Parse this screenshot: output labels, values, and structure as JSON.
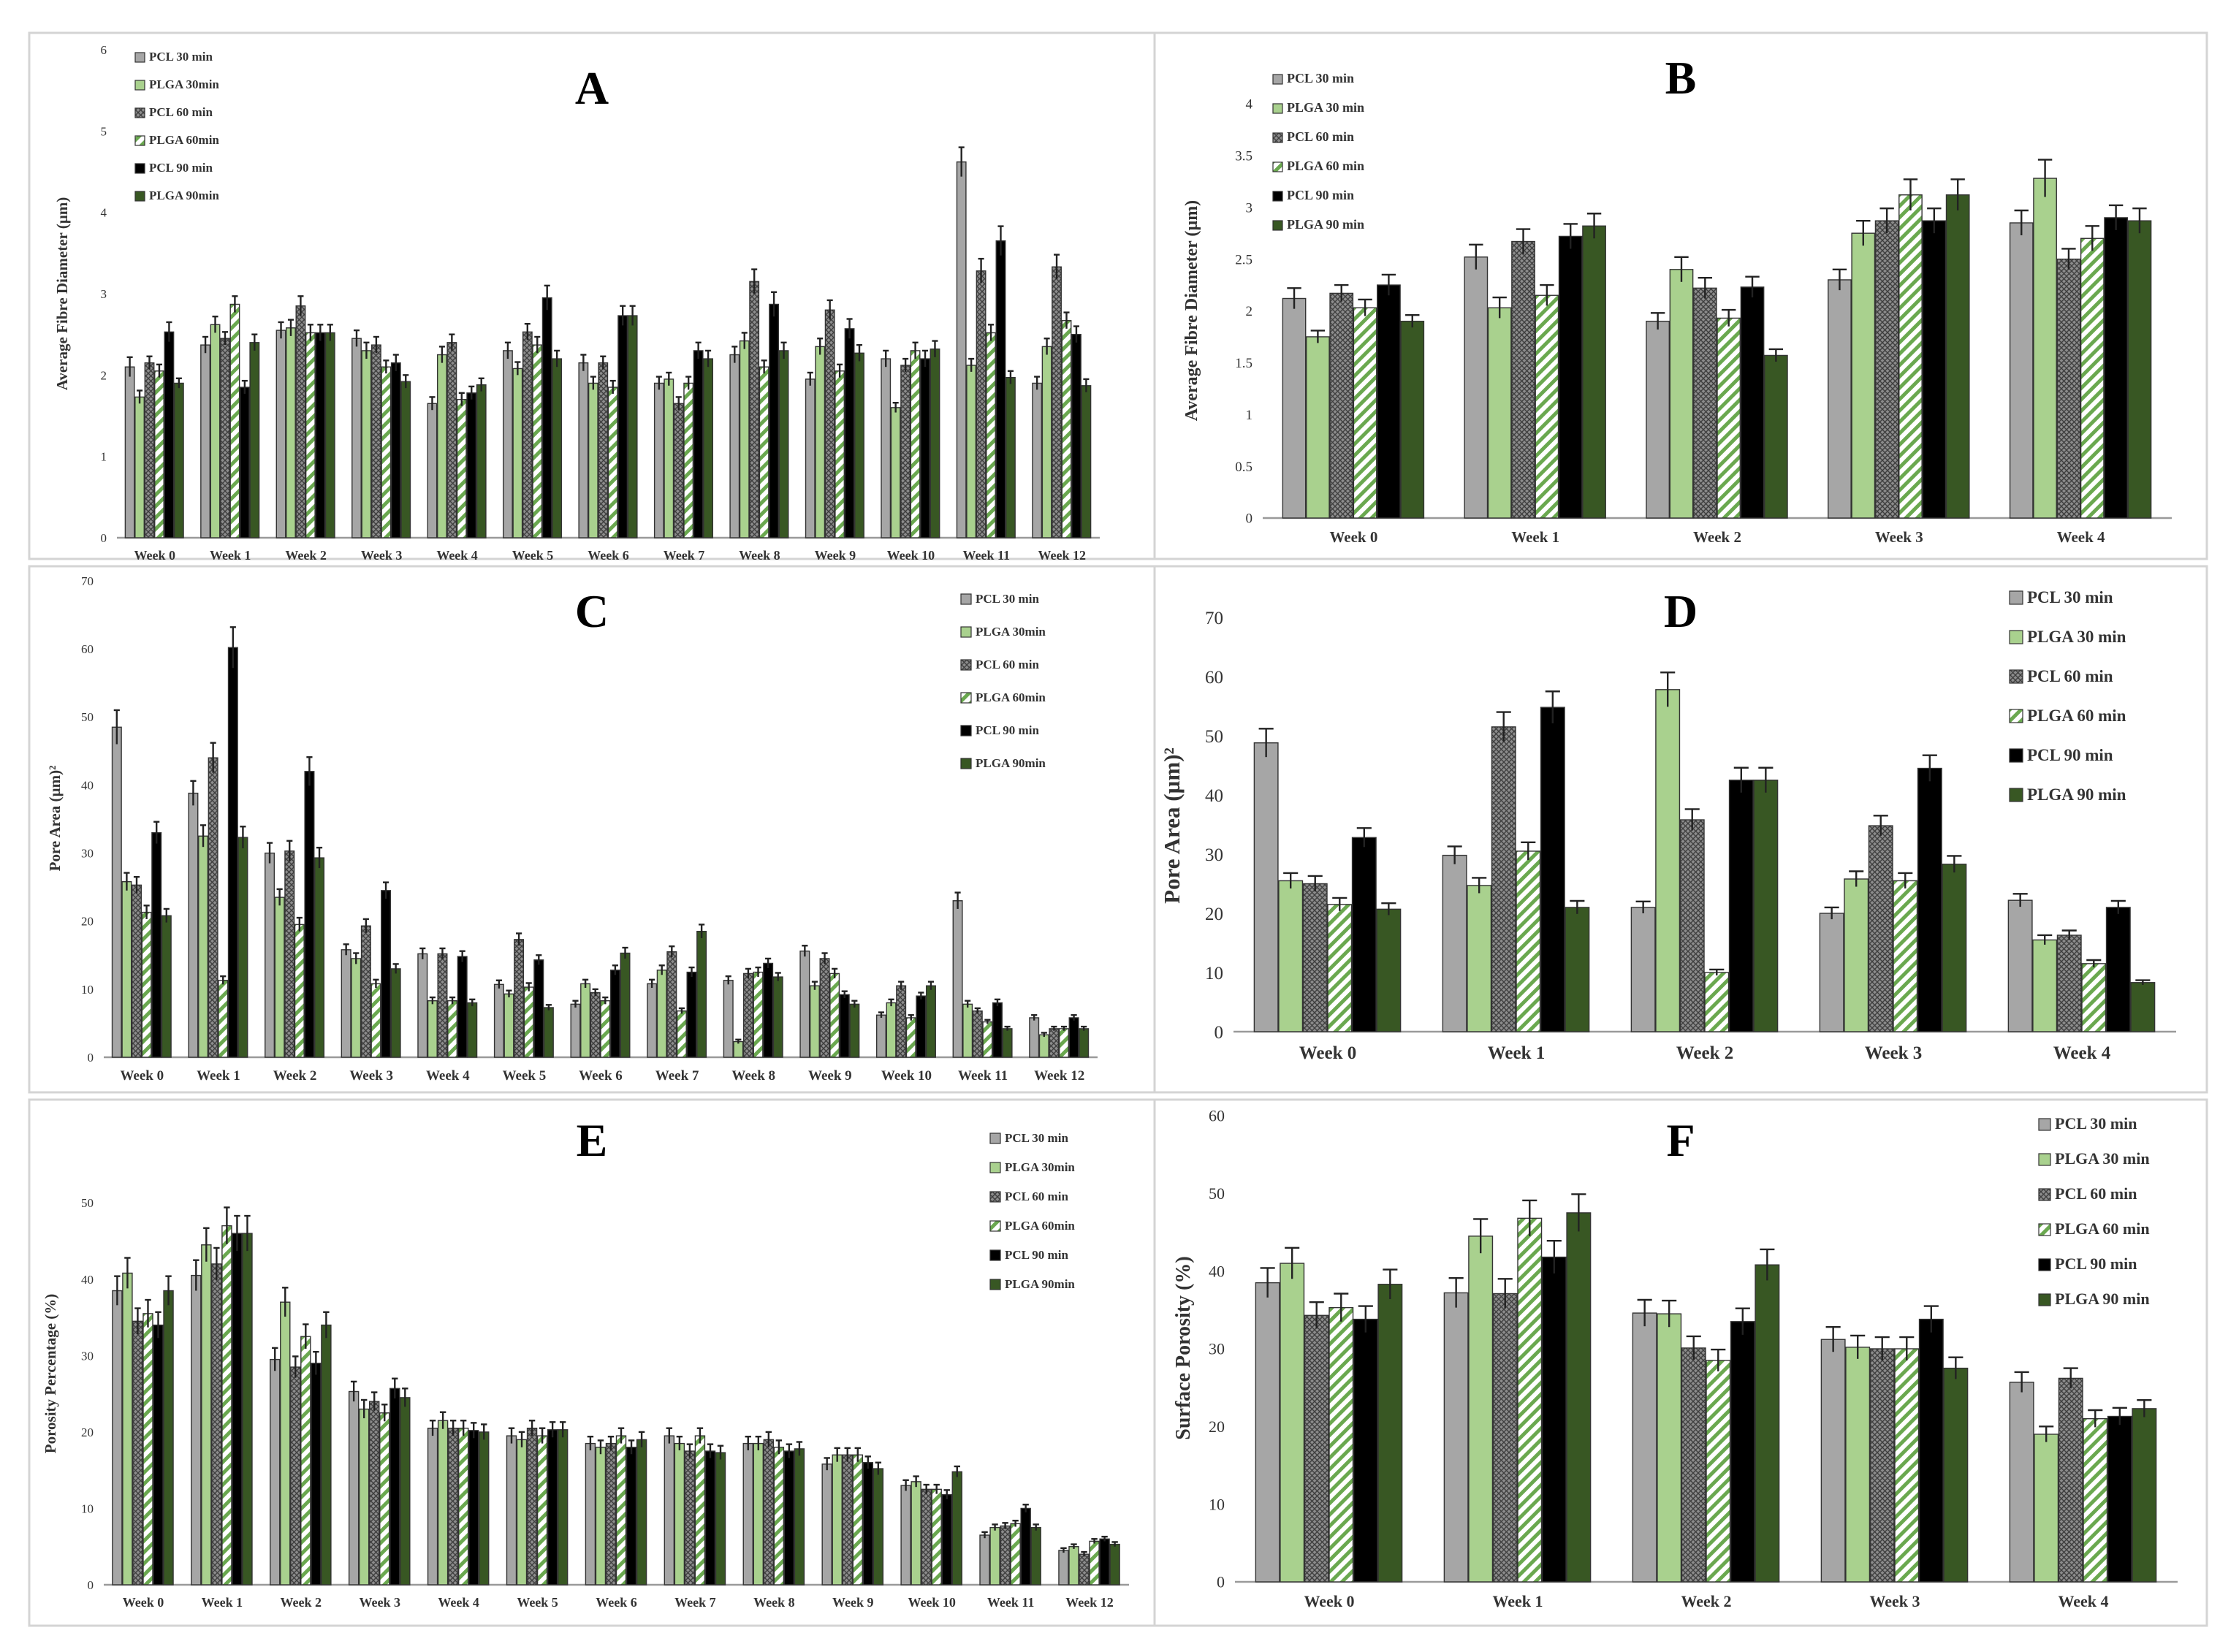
{
  "chart_data": [
    {
      "panel": "A",
      "type": "bar",
      "title": "A",
      "xlabel": "",
      "ylabel": "Average Fibre Diameter (µm)",
      "ylim": [
        0,
        6
      ],
      "yticks": [
        "0",
        "1",
        "2",
        "3",
        "4",
        "5",
        "6"
      ],
      "legend_position": "top-left",
      "categories": [
        "Week 0",
        "Week 1",
        "Week 2",
        "Week 3",
        "Week 4",
        "Week 5",
        "Week 6",
        "Week 7",
        "Week 8",
        "Week 9",
        "Week 10",
        "Week 11",
        "Week 12"
      ],
      "series": [
        {
          "name": "PCL 30 min",
          "style": "pcl30",
          "values": [
            2.1,
            2.37,
            2.55,
            2.45,
            1.65,
            2.3,
            2.15,
            1.9,
            2.25,
            1.95,
            2.2,
            4.62,
            1.9
          ],
          "errors": [
            0.12,
            0.1,
            0.1,
            0.1,
            0.08,
            0.1,
            0.1,
            0.08,
            0.1,
            0.08,
            0.1,
            0.18,
            0.08
          ]
        },
        {
          "name": "PLGA 30min",
          "style": "plga30",
          "values": [
            1.73,
            2.62,
            2.58,
            2.3,
            2.25,
            2.08,
            1.9,
            1.95,
            2.42,
            2.35,
            1.6,
            2.12,
            2.35
          ],
          "errors": [
            0.08,
            0.1,
            0.1,
            0.1,
            0.1,
            0.08,
            0.08,
            0.08,
            0.1,
            0.1,
            0.06,
            0.08,
            0.1
          ]
        },
        {
          "name": "PCL 60 min",
          "style": "pcl60",
          "values": [
            2.15,
            2.45,
            2.85,
            2.37,
            2.4,
            2.53,
            2.15,
            1.65,
            3.15,
            2.8,
            2.12,
            3.28,
            3.33
          ],
          "errors": [
            0.08,
            0.08,
            0.12,
            0.1,
            0.1,
            0.1,
            0.08,
            0.08,
            0.15,
            0.12,
            0.08,
            0.15,
            0.15
          ]
        },
        {
          "name": "PLGA 60min",
          "style": "plga60",
          "values": [
            2.05,
            2.87,
            2.52,
            2.1,
            1.7,
            2.37,
            1.85,
            1.9,
            2.1,
            2.05,
            2.3,
            2.52,
            2.67
          ],
          "errors": [
            0.08,
            0.1,
            0.1,
            0.08,
            0.08,
            0.1,
            0.08,
            0.08,
            0.08,
            0.08,
            0.1,
            0.1,
            0.1
          ]
        },
        {
          "name": "PCL 90 min",
          "style": "pcl90",
          "values": [
            2.53,
            1.85,
            2.52,
            2.15,
            1.78,
            2.95,
            2.73,
            2.3,
            2.87,
            2.57,
            2.2,
            3.65,
            2.5
          ],
          "errors": [
            0.12,
            0.08,
            0.1,
            0.1,
            0.08,
            0.15,
            0.12,
            0.1,
            0.15,
            0.12,
            0.1,
            0.18,
            0.1
          ]
        },
        {
          "name": "PLGA 90min",
          "style": "plga90",
          "values": [
            1.9,
            2.4,
            2.52,
            1.92,
            1.88,
            2.2,
            2.73,
            2.2,
            2.3,
            2.27,
            2.32,
            1.97,
            1.87
          ],
          "errors": [
            0.06,
            0.1,
            0.1,
            0.08,
            0.08,
            0.1,
            0.12,
            0.1,
            0.1,
            0.1,
            0.1,
            0.08,
            0.08
          ]
        }
      ]
    },
    {
      "panel": "B",
      "type": "bar",
      "title": "B",
      "xlabel": "",
      "ylabel": "Average Fibre Diameter (µm)",
      "ylim": [
        0,
        4
      ],
      "yticks": [
        "0",
        "0.5",
        "1",
        "1.5",
        "2",
        "2.5",
        "3",
        "3.5",
        "4"
      ],
      "legend_position": "top-left",
      "categories": [
        "Week 0",
        "Week 1",
        "Week 2",
        "Week 3",
        "Week 4"
      ],
      "series": [
        {
          "name": "PCL 30 min",
          "style": "pcl30",
          "values": [
            2.12,
            2.52,
            1.9,
            2.3,
            2.85
          ],
          "errors": [
            0.1,
            0.12,
            0.08,
            0.1,
            0.12
          ]
        },
        {
          "name": "PLGA 30 min",
          "style": "plga30",
          "values": [
            1.75,
            2.03,
            2.4,
            2.75,
            3.28
          ],
          "errors": [
            0.06,
            0.1,
            0.12,
            0.12,
            0.18
          ]
        },
        {
          "name": "PCL 60 min",
          "style": "pcl60",
          "values": [
            2.17,
            2.67,
            2.22,
            2.87,
            2.5
          ],
          "errors": [
            0.08,
            0.12,
            0.1,
            0.12,
            0.1
          ]
        },
        {
          "name": "PLGA 60 min",
          "style": "plga60",
          "values": [
            2.03,
            2.15,
            1.93,
            3.12,
            2.7
          ],
          "errors": [
            0.08,
            0.1,
            0.08,
            0.15,
            0.12
          ]
        },
        {
          "name": "PCL 90 min",
          "style": "pcl90",
          "values": [
            2.25,
            2.72,
            2.23,
            2.87,
            2.9
          ],
          "errors": [
            0.1,
            0.12,
            0.1,
            0.12,
            0.12
          ]
        },
        {
          "name": "PLGA 90 min",
          "style": "plga90",
          "values": [
            1.9,
            2.82,
            1.57,
            3.12,
            2.87
          ],
          "errors": [
            0.06,
            0.12,
            0.06,
            0.15,
            0.12
          ]
        }
      ]
    },
    {
      "panel": "C",
      "type": "bar",
      "title": "C",
      "xlabel": "",
      "ylabel": "Pore Area (µm)²",
      "ylim": [
        0,
        70
      ],
      "yticks": [
        "0",
        "10",
        "20",
        "30",
        "40",
        "50",
        "60",
        "70"
      ],
      "legend_position": "top-right",
      "categories": [
        "Week 0",
        "Week 1",
        "Week 2",
        "Week 3",
        "Week 4",
        "Week 5",
        "Week 6",
        "Week 7",
        "Week 8",
        "Week 9",
        "Week 10",
        "Week 11",
        "Week 12"
      ],
      "series": [
        {
          "name": "PCL 30 min",
          "style": "pcl30",
          "values": [
            48.5,
            38.8,
            30,
            15.8,
            15.2,
            10.7,
            7.8,
            10.8,
            11.3,
            15.6,
            6.2,
            23,
            5.8
          ],
          "errors": [
            2.5,
            1.8,
            1.5,
            0.8,
            0.8,
            0.6,
            0.5,
            0.6,
            0.6,
            0.8,
            0.4,
            1.2,
            0.4
          ]
        },
        {
          "name": "PLGA 30min",
          "style": "plga30",
          "values": [
            25.8,
            32.5,
            23.5,
            14.5,
            8.3,
            9.3,
            10.8,
            12.8,
            2.3,
            10.5,
            8,
            7.8,
            3.3
          ],
          "errors": [
            1.3,
            1.6,
            1.2,
            0.8,
            0.5,
            0.5,
            0.6,
            0.7,
            0.3,
            0.6,
            0.5,
            0.5,
            0.3
          ]
        },
        {
          "name": "PCL 60 min",
          "style": "pcl60",
          "values": [
            25.3,
            44,
            30.3,
            19.3,
            15.2,
            17.3,
            9.5,
            15.5,
            12.3,
            14.5,
            10.5,
            6.8,
            4.2
          ],
          "errors": [
            1.2,
            2.2,
            1.5,
            1,
            0.8,
            0.9,
            0.5,
            0.8,
            0.7,
            0.8,
            0.6,
            0.4,
            0.3
          ]
        },
        {
          "name": "PLGA 60min",
          "style": "plga60",
          "values": [
            21.3,
            11.3,
            19.5,
            10.8,
            8.3,
            10.3,
            8.3,
            6.8,
            12.5,
            12.3,
            5.8,
            5.2,
            4.2
          ],
          "errors": [
            1,
            0.6,
            1,
            0.6,
            0.5,
            0.6,
            0.5,
            0.4,
            0.7,
            0.7,
            0.4,
            0.3,
            0.3
          ]
        },
        {
          "name": "PCL 90 min",
          "style": "pcl90",
          "values": [
            33,
            60.2,
            42,
            24.5,
            14.8,
            14.3,
            12.8,
            12.5,
            13.8,
            9.2,
            9,
            8,
            5.8
          ],
          "errors": [
            1.6,
            3,
            2.1,
            1.2,
            0.8,
            0.7,
            0.7,
            0.7,
            0.7,
            0.5,
            0.5,
            0.5,
            0.4
          ]
        },
        {
          "name": "PLGA 90min",
          "style": "plga90",
          "values": [
            20.8,
            32.3,
            29.3,
            13,
            8,
            7.3,
            15.3,
            18.5,
            11.8,
            7.8,
            10.5,
            4.2,
            4.2
          ],
          "errors": [
            1,
            1.6,
            1.5,
            0.7,
            0.5,
            0.4,
            0.8,
            1,
            0.6,
            0.5,
            0.6,
            0.3,
            0.3
          ]
        }
      ]
    },
    {
      "panel": "D",
      "type": "bar",
      "title": "D",
      "xlabel": "",
      "ylabel": "Pore Area (µm)²",
      "ylim": [
        0,
        70
      ],
      "yticks": [
        "0",
        "10",
        "20",
        "30",
        "40",
        "50",
        "60",
        "70"
      ],
      "legend_position": "top-right",
      "categories": [
        "Week 0",
        "Week 1",
        "Week 2",
        "Week 3",
        "Week 4"
      ],
      "series": [
        {
          "name": "PCL 30 min",
          "style": "pcl30",
          "values": [
            48.8,
            29.8,
            21,
            20,
            22.2
          ],
          "errors": [
            2.4,
            1.5,
            1,
            1,
            1.1
          ]
        },
        {
          "name": "PLGA 30 min",
          "style": "plga30",
          "values": [
            25.5,
            24.7,
            57.8,
            25.8,
            15.5
          ],
          "errors": [
            1.3,
            1.3,
            2.9,
            1.3,
            0.8
          ]
        },
        {
          "name": "PCL 60 min",
          "style": "pcl60",
          "values": [
            25,
            51.5,
            35.8,
            34.8,
            16.3
          ],
          "errors": [
            1.3,
            2.5,
            1.8,
            1.7,
            0.8
          ]
        },
        {
          "name": "PLGA 60 min",
          "style": "plga60",
          "values": [
            21.5,
            30.5,
            10,
            25.5,
            11.5
          ],
          "errors": [
            1.1,
            1.5,
            0.5,
            1.3,
            0.6
          ]
        },
        {
          "name": "PCL 90 min",
          "style": "pcl90",
          "values": [
            32.8,
            54.8,
            42.5,
            44.5,
            21
          ],
          "errors": [
            1.6,
            2.7,
            2.1,
            2.2,
            1.1
          ]
        },
        {
          "name": "PLGA 90 min",
          "style": "plga90",
          "values": [
            20.7,
            21,
            42.5,
            28.3,
            8.3
          ],
          "errors": [
            1,
            1.1,
            2.1,
            1.4,
            0.4
          ]
        }
      ]
    },
    {
      "panel": "E",
      "type": "bar",
      "title": "E",
      "xlabel": "",
      "ylabel": "Porosity Percentage (%)",
      "ylim": [
        0,
        55
      ],
      "yticks": [
        "0",
        "10",
        "20",
        "30",
        "40",
        "50"
      ],
      "legend_position": "top-right",
      "categories": [
        "Week 0",
        "Week 1",
        "Week 2",
        "Week 3",
        "Week 4",
        "Week 5",
        "Week 6",
        "Week 7",
        "Week 8",
        "Week 9",
        "Week 10",
        "Week 11",
        "Week 12"
      ],
      "series": [
        {
          "name": "PCL 30 min",
          "style": "pcl30",
          "values": [
            38.5,
            40.5,
            29.5,
            25.3,
            20.5,
            19.5,
            18.5,
            19.5,
            18.5,
            15.8,
            13,
            6.5,
            4.5
          ],
          "errors": [
            1.9,
            2,
            1.5,
            1.3,
            1,
            1,
            0.9,
            1,
            0.9,
            0.8,
            0.7,
            0.4,
            0.3
          ]
        },
        {
          "name": "PLGA 30min",
          "style": "plga30",
          "values": [
            40.8,
            44.5,
            37,
            23,
            21.5,
            19,
            18,
            18.5,
            18.5,
            17,
            13.5,
            7.5,
            5
          ],
          "errors": [
            2,
            2.2,
            1.9,
            1.2,
            1.1,
            1,
            0.9,
            0.9,
            0.9,
            0.9,
            0.7,
            0.4,
            0.3
          ]
        },
        {
          "name": "PCL 60 min",
          "style": "pcl60",
          "values": [
            34.5,
            42,
            28.5,
            24,
            20.5,
            20.5,
            18.5,
            17.5,
            19,
            17,
            12.5,
            7.7,
            4
          ],
          "errors": [
            1.7,
            2.1,
            1.4,
            1.2,
            1,
            1,
            0.9,
            0.9,
            1,
            0.9,
            0.6,
            0.4,
            0.3
          ]
        },
        {
          "name": "PLGA 60min",
          "style": "plga60",
          "values": [
            35.5,
            47,
            32.5,
            22.5,
            20.5,
            19.5,
            19.5,
            19.5,
            18,
            17,
            12.5,
            8,
            5.7
          ],
          "errors": [
            1.8,
            2.4,
            1.6,
            1.1,
            1,
            1,
            1,
            1,
            0.9,
            0.9,
            0.6,
            0.4,
            0.3
          ]
        },
        {
          "name": "PCL 90 min",
          "style": "pcl90",
          "values": [
            34,
            46,
            29,
            25.7,
            20.2,
            20.3,
            18,
            17.5,
            17.5,
            16,
            11.8,
            10,
            6
          ],
          "errors": [
            1.7,
            2.3,
            1.5,
            1.3,
            1,
            1,
            0.9,
            0.9,
            0.9,
            0.8,
            0.6,
            0.5,
            0.3
          ]
        },
        {
          "name": "PLGA 90min",
          "style": "plga90",
          "values": [
            38.5,
            46,
            34,
            24.5,
            20,
            20.3,
            19,
            17.3,
            17.8,
            15.2,
            14.8,
            7.5,
            5.3
          ],
          "errors": [
            1.9,
            2.3,
            1.7,
            1.2,
            1,
            1,
            1,
            0.9,
            0.9,
            0.8,
            0.7,
            0.4,
            0.3
          ]
        }
      ]
    },
    {
      "panel": "F",
      "type": "bar",
      "title": "F",
      "xlabel": "",
      "ylabel": "Surface Porosity (%)",
      "ylim": [
        0,
        60
      ],
      "yticks": [
        "0",
        "10",
        "20",
        "30",
        "40",
        "50",
        "60"
      ],
      "legend_position": "top-right",
      "categories": [
        "Week 0",
        "Week 1",
        "Week 2",
        "Week 3",
        "Week 4"
      ],
      "series": [
        {
          "name": "PCL 30 min",
          "style": "pcl30",
          "values": [
            38.5,
            37.2,
            34.6,
            31.2,
            25.7
          ],
          "errors": [
            1.9,
            1.9,
            1.7,
            1.6,
            1.3
          ]
        },
        {
          "name": "PLGA 30 min",
          "style": "plga30",
          "values": [
            41,
            44.5,
            34.5,
            30.2,
            19
          ],
          "errors": [
            2,
            2.2,
            1.7,
            1.5,
            1
          ]
        },
        {
          "name": "PCL 60 min",
          "style": "pcl60",
          "values": [
            34.3,
            37.1,
            30.1,
            30,
            26.2
          ],
          "errors": [
            1.7,
            1.9,
            1.5,
            1.5,
            1.3
          ]
        },
        {
          "name": "PLGA 60 min",
          "style": "plga60",
          "values": [
            35.3,
            46.8,
            28.5,
            30,
            21
          ],
          "errors": [
            1.8,
            2.3,
            1.4,
            1.5,
            1.1
          ]
        },
        {
          "name": "PCL 90 min",
          "style": "pcl90",
          "values": [
            33.8,
            41.8,
            33.5,
            33.8,
            21.3
          ],
          "errors": [
            1.7,
            2.1,
            1.7,
            1.7,
            1.1
          ]
        },
        {
          "name": "PLGA 90 min",
          "style": "plga90",
          "values": [
            38.3,
            47.5,
            40.8,
            27.5,
            22.3
          ],
          "errors": [
            1.9,
            2.4,
            2,
            1.4,
            1.1
          ]
        }
      ]
    }
  ]
}
